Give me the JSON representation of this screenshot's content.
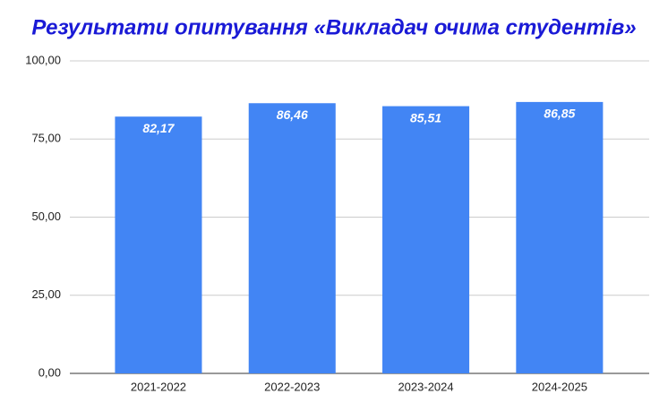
{
  "chart_data": {
    "type": "bar",
    "title": "Результати опитування «Викладач очима студентів»",
    "title_color": "#1a1ad6",
    "categories": [
      "2021-2022",
      "2022-2023",
      "2023-2024",
      "2024-2025"
    ],
    "values": [
      82.17,
      86.46,
      85.51,
      86.85
    ],
    "value_labels": [
      "82,17",
      "86,46",
      "85,51",
      "86,85"
    ],
    "color": "#4285f4",
    "ylim": [
      0,
      100
    ],
    "yticks": [
      {
        "value": 0,
        "label": "0,00"
      },
      {
        "value": 25,
        "label": "25,00"
      },
      {
        "value": 50,
        "label": "50,00"
      },
      {
        "value": 75,
        "label": "75,00"
      },
      {
        "value": 100,
        "label": "100,00"
      }
    ],
    "grid": true
  }
}
